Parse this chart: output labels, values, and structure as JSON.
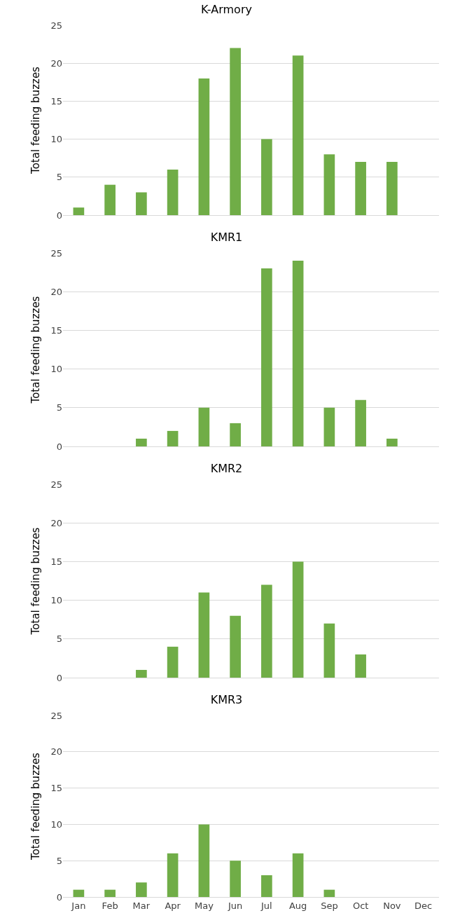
{
  "chart_data": [
    {
      "type": "bar",
      "title": "K-Armory",
      "ylabel": "Total feeding buzzes",
      "categories": [
        null,
        null,
        null,
        null,
        null,
        null,
        null,
        null,
        null,
        null,
        null,
        null
      ],
      "values": [
        1,
        4,
        3,
        6,
        18,
        22,
        10,
        21,
        8,
        7,
        7,
        null
      ],
      "color": "#70ad47",
      "ylim": [
        0,
        25
      ],
      "yticks": [
        0,
        5,
        10,
        15,
        20,
        25
      ],
      "grid": "y",
      "tick_labels": "y"
    },
    {
      "type": "bar",
      "title": "KMR1",
      "ylabel": "Total feeding buzzes",
      "categories": [
        null,
        null,
        null,
        null,
        null,
        null,
        null,
        null,
        null,
        null,
        null,
        null
      ],
      "values": [
        null,
        null,
        1,
        2,
        5,
        3,
        23,
        24,
        5,
        6,
        1,
        null
      ],
      "color": "#70ad47",
      "ylim": [
        0,
        25
      ],
      "yticks": [
        0,
        5,
        10,
        15,
        20,
        25
      ],
      "grid": "y",
      "tick_labels": "y"
    },
    {
      "type": "bar",
      "title": "KMR2",
      "ylabel": "Total feeding buzzes",
      "categories": [
        null,
        null,
        null,
        null,
        null,
        null,
        null,
        null,
        null,
        null,
        null,
        null
      ],
      "values": [
        null,
        null,
        1,
        4,
        11,
        8,
        12,
        15,
        7,
        3,
        null,
        null
      ],
      "color": "#70ad47",
      "ylim": [
        0,
        25
      ],
      "yticks": [
        0,
        5,
        10,
        15,
        20,
        25
      ],
      "grid": "y",
      "tick_labels": "y"
    },
    {
      "type": "bar",
      "title": "KMR3",
      "ylabel": "Total feeding buzzes",
      "categories": [
        "Jan",
        "Feb",
        "Mar",
        "Apr",
        "May",
        "Jun",
        "Jul",
        "Aug",
        "Sep",
        "Oct",
        "Nov",
        "Dec"
      ],
      "values": [
        1,
        1,
        2,
        6,
        10,
        5,
        3,
        6,
        1,
        null,
        null,
        null
      ],
      "color": "#70ad47",
      "ylim": [
        0,
        25
      ],
      "yticks": [
        0,
        5,
        10,
        15,
        20,
        25
      ],
      "grid": "y"
    }
  ]
}
